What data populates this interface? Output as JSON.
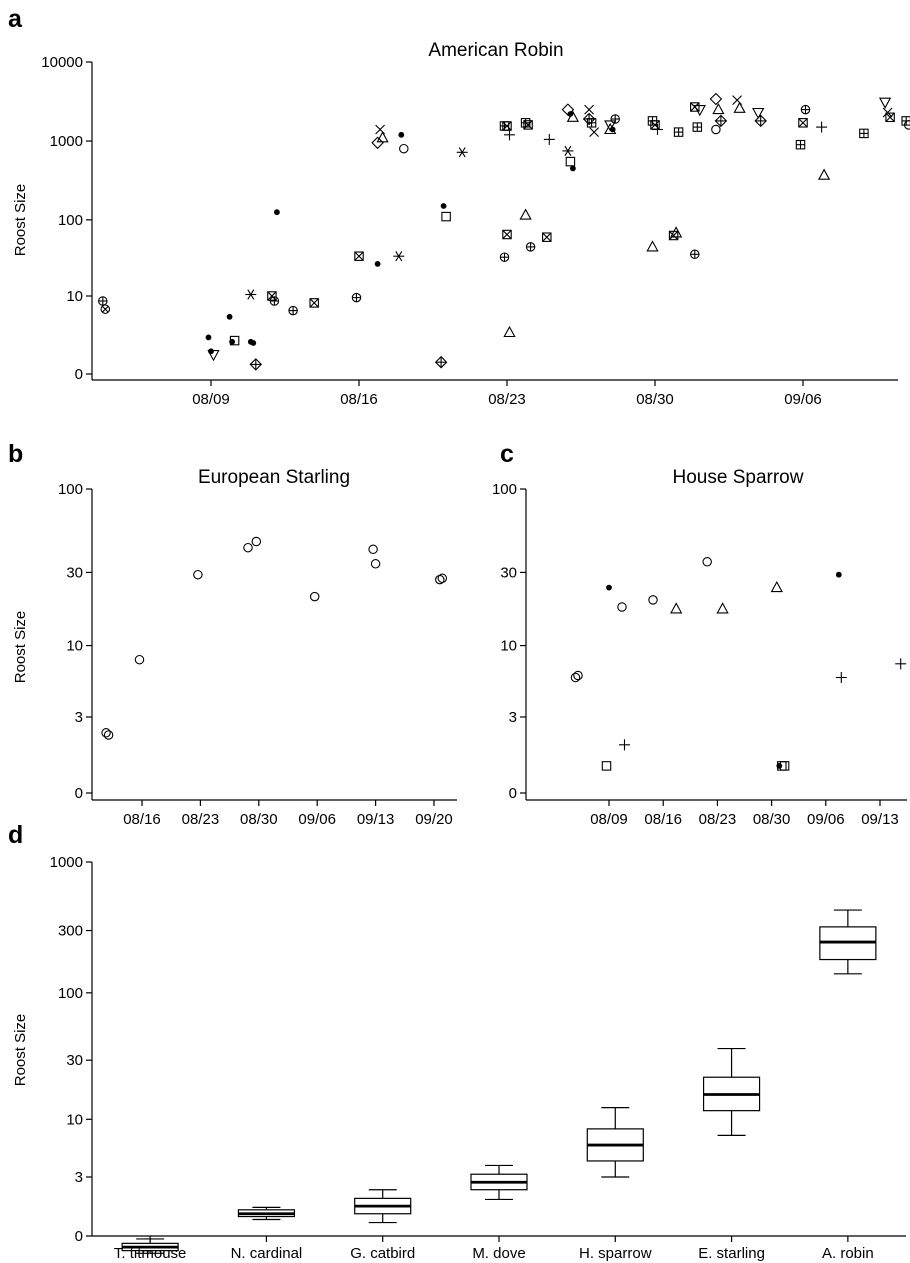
{
  "figure": {
    "panels": [
      {
        "label": "a",
        "title": "American Robin"
      },
      {
        "label": "b",
        "title": "European Starling"
      },
      {
        "label": "c",
        "title": "House Sparrow"
      },
      {
        "label": "d",
        "title": ""
      }
    ]
  },
  "chart_data": [
    {
      "panel": "a",
      "type": "scatter",
      "title": "American Robin",
      "xlabel": "",
      "ylabel": "Roost Size",
      "yscale": "log (0 shown at bottom)",
      "ylim": [
        0,
        10000
      ],
      "yticks": [
        "0",
        "10",
        "100",
        "1000",
        "10000"
      ],
      "xticks": [
        "08/09",
        "08/16",
        "08/23",
        "08/30",
        "09/06"
      ],
      "xrange": [
        "08/03",
        "09/12"
      ],
      "marker_note": "marker shapes distinguish individual roosts",
      "points": [
        {
          "x": "08/04",
          "y": 8.5,
          "m": "circle-plus"
        },
        {
          "x": "08/04",
          "y": 6.5,
          "m": "circle-x"
        },
        {
          "x": "08/09",
          "y": 2.3,
          "m": "dot"
        },
        {
          "x": "08/09",
          "y": 1.2,
          "m": "dot"
        },
        {
          "x": "08/09",
          "y": 1.0,
          "m": "triangle-down"
        },
        {
          "x": "08/10",
          "y": 5.0,
          "m": "dot"
        },
        {
          "x": "08/10",
          "y": 1.9,
          "m": "dot"
        },
        {
          "x": "08/10",
          "y": 2.0,
          "m": "square"
        },
        {
          "x": "08/11",
          "y": 1.9,
          "m": "dot"
        },
        {
          "x": "08/11",
          "y": 1.8,
          "m": "dot"
        },
        {
          "x": "08/11",
          "y": 0.5,
          "m": "circle-diamond"
        },
        {
          "x": "08/11",
          "y": 10.5,
          "m": "asterisk"
        },
        {
          "x": "08/12",
          "y": 10.0,
          "m": "square-cross"
        },
        {
          "x": "08/12",
          "y": 8.5,
          "m": "circle-plus"
        },
        {
          "x": "08/12",
          "y": 125,
          "m": "dot"
        },
        {
          "x": "08/13",
          "y": 6.2,
          "m": "circle-plus"
        },
        {
          "x": "08/14",
          "y": 8.0,
          "m": "square-cross"
        },
        {
          "x": "08/16",
          "y": 9.5,
          "m": "circle-plus"
        },
        {
          "x": "08/16",
          "y": 34,
          "m": "square-cross"
        },
        {
          "x": "08/17",
          "y": 950,
          "m": "diamond"
        },
        {
          "x": "08/17",
          "y": 1400,
          "m": "cross"
        },
        {
          "x": "08/17",
          "y": 1100,
          "m": "triangle"
        },
        {
          "x": "08/17",
          "y": 27,
          "m": "dot"
        },
        {
          "x": "08/18",
          "y": 34,
          "m": "asterisk"
        },
        {
          "x": "08/18",
          "y": 1200,
          "m": "dot"
        },
        {
          "x": "08/18",
          "y": 800,
          "m": "circle"
        },
        {
          "x": "08/20",
          "y": 0.6,
          "m": "circle-diamond"
        },
        {
          "x": "08/20",
          "y": 150,
          "m": "dot"
        },
        {
          "x": "08/20",
          "y": 110,
          "m": "square"
        },
        {
          "x": "08/21",
          "y": 720,
          "m": "asterisk"
        },
        {
          "x": "08/23",
          "y": 1550,
          "m": "square-grid"
        },
        {
          "x": "08/23",
          "y": 1550,
          "m": "square-cross"
        },
        {
          "x": "08/23",
          "y": 1200,
          "m": "plus"
        },
        {
          "x": "08/23",
          "y": 33,
          "m": "circle-plus"
        },
        {
          "x": "08/23",
          "y": 65,
          "m": "square-cross"
        },
        {
          "x": "08/23",
          "y": 2.8,
          "m": "triangle"
        },
        {
          "x": "08/24",
          "y": 1700,
          "m": "square-grid"
        },
        {
          "x": "08/24",
          "y": 1600,
          "m": "square-cross"
        },
        {
          "x": "08/24",
          "y": 45,
          "m": "circle-plus"
        },
        {
          "x": "08/24",
          "y": 115,
          "m": "triangle"
        },
        {
          "x": "08/25",
          "y": 60,
          "m": "square-cross"
        },
        {
          "x": "08/25",
          "y": 1050,
          "m": "plus"
        },
        {
          "x": "08/26",
          "y": 2500,
          "m": "diamond"
        },
        {
          "x": "08/26",
          "y": 2200,
          "m": "dot"
        },
        {
          "x": "08/26",
          "y": 2000,
          "m": "triangle"
        },
        {
          "x": "08/26",
          "y": 750,
          "m": "asterisk"
        },
        {
          "x": "08/26",
          "y": 550,
          "m": "square"
        },
        {
          "x": "08/26",
          "y": 450,
          "m": "dot"
        },
        {
          "x": "08/27",
          "y": 1900,
          "m": "circle-diamond"
        },
        {
          "x": "08/27",
          "y": 1700,
          "m": "square-grid"
        },
        {
          "x": "08/27",
          "y": 1300,
          "m": "cross"
        },
        {
          "x": "08/27",
          "y": 2500,
          "m": "cross"
        },
        {
          "x": "08/28",
          "y": 1400,
          "m": "triangle"
        },
        {
          "x": "08/28",
          "y": 1400,
          "m": "dot"
        },
        {
          "x": "08/28",
          "y": 1900,
          "m": "circle-plus"
        },
        {
          "x": "08/28",
          "y": 1600,
          "m": "triangle-down"
        },
        {
          "x": "08/30",
          "y": 1800,
          "m": "square-grid"
        },
        {
          "x": "08/30",
          "y": 1600,
          "m": "square-cross"
        },
        {
          "x": "08/30",
          "y": 1400,
          "m": "plus"
        },
        {
          "x": "08/30",
          "y": 45,
          "m": "triangle"
        },
        {
          "x": "08/31",
          "y": 63,
          "m": "square-cross"
        },
        {
          "x": "08/31",
          "y": 68,
          "m": "triangle"
        },
        {
          "x": "08/31",
          "y": 1300,
          "m": "square-grid"
        },
        {
          "x": "09/01",
          "y": 36,
          "m": "circle-plus"
        },
        {
          "x": "09/01",
          "y": 1500,
          "m": "square-grid"
        },
        {
          "x": "09/01",
          "y": 2500,
          "m": "triangle-down"
        },
        {
          "x": "09/01",
          "y": 2700,
          "m": "square-cross"
        },
        {
          "x": "09/02",
          "y": 3400,
          "m": "diamond"
        },
        {
          "x": "09/02",
          "y": 2500,
          "m": "triangle"
        },
        {
          "x": "09/02",
          "y": 1800,
          "m": "circle-diamond"
        },
        {
          "x": "09/02",
          "y": 1400,
          "m": "circle"
        },
        {
          "x": "09/03",
          "y": 3300,
          "m": "cross"
        },
        {
          "x": "09/03",
          "y": 2600,
          "m": "triangle"
        },
        {
          "x": "09/04",
          "y": 2300,
          "m": "triangle-down"
        },
        {
          "x": "09/04",
          "y": 1800,
          "m": "circle-diamond"
        },
        {
          "x": "09/06",
          "y": 900,
          "m": "square-grid"
        },
        {
          "x": "09/06",
          "y": 1700,
          "m": "square-cross"
        },
        {
          "x": "09/06",
          "y": 2500,
          "m": "circle-plus"
        },
        {
          "x": "09/07",
          "y": 1500,
          "m": "plus"
        },
        {
          "x": "09/07",
          "y": 370,
          "m": "triangle"
        },
        {
          "x": "09/09",
          "y": 1250,
          "m": "square-grid"
        },
        {
          "x": "09/10",
          "y": 3100,
          "m": "triangle-down"
        },
        {
          "x": "09/10",
          "y": 2300,
          "m": "cross"
        },
        {
          "x": "09/10",
          "y": 2000,
          "m": "square-cross"
        },
        {
          "x": "09/11",
          "y": 1800,
          "m": "square-grid"
        },
        {
          "x": "09/11",
          "y": 1600,
          "m": "circle"
        },
        {
          "x": "09/12",
          "y": 2600,
          "m": "circle"
        }
      ]
    },
    {
      "panel": "b",
      "type": "scatter",
      "title": "European Starling",
      "xlabel": "",
      "ylabel": "Roost Size",
      "yscale": "log (0 shown at bottom)",
      "ylim": [
        0,
        100
      ],
      "yticks": [
        "0",
        "3",
        "10",
        "30",
        "100"
      ],
      "xticks": [
        "08/16",
        "08/23",
        "08/30",
        "09/06",
        "09/13",
        "09/20"
      ],
      "xrange": [
        "08/11",
        "09/25"
      ],
      "points": [
        {
          "x": "08/12",
          "y": 2.2,
          "m": "circle"
        },
        {
          "x": "08/12",
          "y": 2.1,
          "m": "circle"
        },
        {
          "x": "08/16",
          "y": 8.0,
          "m": "circle"
        },
        {
          "x": "08/23",
          "y": 29,
          "m": "circle"
        },
        {
          "x": "08/29",
          "y": 43,
          "m": "circle"
        },
        {
          "x": "08/30",
          "y": 47,
          "m": "circle"
        },
        {
          "x": "09/06",
          "y": 21,
          "m": "circle"
        },
        {
          "x": "09/13",
          "y": 42,
          "m": "circle"
        },
        {
          "x": "09/13",
          "y": 34,
          "m": "circle"
        },
        {
          "x": "09/21",
          "y": 27,
          "m": "circle"
        },
        {
          "x": "09/21",
          "y": 27.5,
          "m": "circle"
        }
      ]
    },
    {
      "panel": "c",
      "type": "scatter",
      "title": "House Sparrow",
      "xlabel": "",
      "ylabel": "",
      "yscale": "log (0 shown at bottom)",
      "ylim": [
        0,
        100
      ],
      "yticks": [
        "0",
        "3",
        "10",
        "30",
        "100"
      ],
      "xticks": [
        "08/09",
        "08/16",
        "08/23",
        "08/30",
        "09/06",
        "09/13"
      ],
      "xrange": [
        "08/03",
        "09/17"
      ],
      "points": [
        {
          "x": "08/05",
          "y": 6.0,
          "m": "circle"
        },
        {
          "x": "08/05",
          "y": 6.2,
          "m": "circle"
        },
        {
          "x": "08/09",
          "y": 1.0,
          "m": "square"
        },
        {
          "x": "08/09",
          "y": 24,
          "m": "dot"
        },
        {
          "x": "08/11",
          "y": 18,
          "m": "circle"
        },
        {
          "x": "08/11",
          "y": 1.7,
          "m": "plus"
        },
        {
          "x": "08/15",
          "y": 20,
          "m": "circle"
        },
        {
          "x": "08/18",
          "y": 17.5,
          "m": "triangle"
        },
        {
          "x": "08/22",
          "y": 35,
          "m": "circle"
        },
        {
          "x": "08/24",
          "y": 17.5,
          "m": "triangle"
        },
        {
          "x": "08/31",
          "y": 24,
          "m": "triangle"
        },
        {
          "x": "08/31",
          "y": 1.0,
          "m": "dot"
        },
        {
          "x": "08/31",
          "y": 1.0,
          "m": "square"
        },
        {
          "x": "09/01",
          "y": 1.0,
          "m": "square"
        },
        {
          "x": "09/08",
          "y": 29,
          "m": "dot"
        },
        {
          "x": "09/08",
          "y": 6.0,
          "m": "plus"
        },
        {
          "x": "09/16",
          "y": 7.5,
          "m": "plus"
        }
      ]
    },
    {
      "panel": "d",
      "type": "box",
      "title": "",
      "xlabel": "",
      "ylabel": "Roost Size",
      "yscale": "log (0 shown at bottom)",
      "ylim": [
        0,
        1000
      ],
      "yticks": [
        "0",
        "3",
        "10",
        "30",
        "100",
        "300",
        "1000"
      ],
      "categories": [
        "T. titmouse",
        "N. cardinal",
        "G. catbird",
        "M. dove",
        "H. sparrow",
        "E. starling",
        "A. robin"
      ],
      "boxes": [
        {
          "name": "T. titmouse",
          "whisker_low": 0.05,
          "q1": 0.1,
          "median": 0.17,
          "q3": 0.25,
          "whisker_high": 0.35
        },
        {
          "name": "N. cardinal",
          "whisker_low": 0.9,
          "q1": 1.0,
          "median": 1.1,
          "q3": 1.25,
          "whisker_high": 1.35
        },
        {
          "name": "G. catbird",
          "whisker_low": 0.8,
          "q1": 1.1,
          "median": 1.4,
          "q3": 1.75,
          "whisker_high": 2.2
        },
        {
          "name": "M. dove",
          "whisker_low": 1.7,
          "q1": 2.2,
          "median": 2.65,
          "q3": 3.2,
          "whisker_high": 3.9
        },
        {
          "name": "H. sparrow",
          "whisker_low": 3.0,
          "q1": 4.3,
          "median": 6.0,
          "q3": 8.3,
          "whisker_high": 12.5
        },
        {
          "name": "E. starling",
          "whisker_low": 7.3,
          "q1": 11.8,
          "median": 16,
          "q3": 22,
          "whisker_high": 37
        },
        {
          "name": "A. robin",
          "whisker_low": 140,
          "q1": 180,
          "median": 245,
          "q3": 320,
          "whisker_high": 430
        }
      ]
    }
  ]
}
